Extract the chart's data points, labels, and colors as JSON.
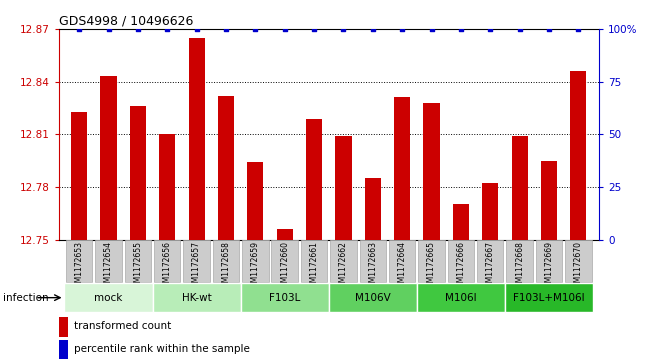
{
  "title": "GDS4998 / 10496626",
  "samples": [
    "GSM1172653",
    "GSM1172654",
    "GSM1172655",
    "GSM1172656",
    "GSM1172657",
    "GSM1172658",
    "GSM1172659",
    "GSM1172660",
    "GSM1172661",
    "GSM1172662",
    "GSM1172663",
    "GSM1172664",
    "GSM1172665",
    "GSM1172666",
    "GSM1172667",
    "GSM1172668",
    "GSM1172669",
    "GSM1172670"
  ],
  "bar_values": [
    12.823,
    12.843,
    12.826,
    12.81,
    12.865,
    12.832,
    12.794,
    12.756,
    12.819,
    12.809,
    12.785,
    12.831,
    12.828,
    12.77,
    12.782,
    12.809,
    12.795,
    12.846
  ],
  "percentile_values": [
    100,
    100,
    100,
    100,
    100,
    100,
    100,
    100,
    100,
    100,
    100,
    100,
    100,
    100,
    100,
    100,
    100,
    100
  ],
  "bar_color": "#cc0000",
  "dot_color": "#0000cc",
  "ylim_left": [
    12.75,
    12.87
  ],
  "ylim_right": [
    0,
    100
  ],
  "yticks_left": [
    12.75,
    12.78,
    12.81,
    12.84,
    12.87
  ],
  "yticks_right": [
    0,
    25,
    50,
    75,
    100
  ],
  "ytick_labels_right": [
    "0",
    "25",
    "50",
    "75",
    "100%"
  ],
  "groups": [
    {
      "label": "mock",
      "start": 0,
      "end": 2,
      "color": "#d8f5d8"
    },
    {
      "label": "HK-wt",
      "start": 3,
      "end": 5,
      "color": "#b8edb8"
    },
    {
      "label": "F103L",
      "start": 6,
      "end": 8,
      "color": "#90e090"
    },
    {
      "label": "M106V",
      "start": 9,
      "end": 11,
      "color": "#60d060"
    },
    {
      "label": "M106I",
      "start": 12,
      "end": 14,
      "color": "#40c840"
    },
    {
      "label": "F103L+M106I",
      "start": 15,
      "end": 17,
      "color": "#28b828"
    }
  ],
  "infection_label": "infection",
  "legend_bar_label": "transformed count",
  "legend_dot_label": "percentile rank within the sample",
  "bar_width": 0.55
}
